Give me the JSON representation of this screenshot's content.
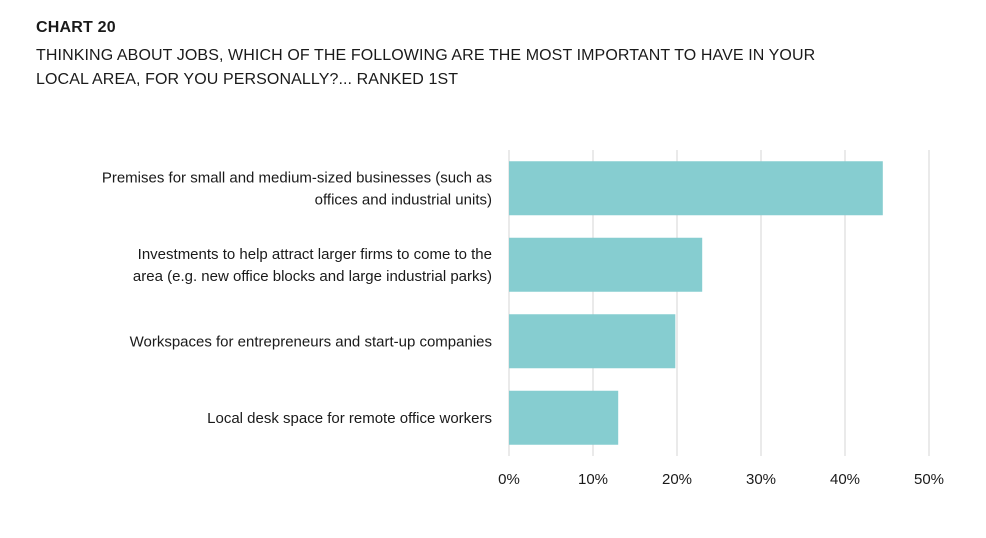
{
  "header": {
    "label": "CHART 20",
    "title": "THINKING ABOUT JOBS, WHICH OF THE FOLLOWING ARE THE MOST IMPORTANT TO HAVE IN YOUR LOCAL AREA, FOR YOU PERSONALLY?... RANKED 1ST"
  },
  "colors": {
    "bar": "#86CDD0",
    "grid": "#d4d4d4",
    "text": "#1a1a1a"
  },
  "chart_data": {
    "type": "bar",
    "orientation": "horizontal",
    "title": "THINKING ABOUT JOBS, WHICH OF THE FOLLOWING ARE THE MOST IMPORTANT TO HAVE IN YOUR LOCAL AREA, FOR YOU PERSONALLY?... RANKED 1ST",
    "categories": [
      [
        "Premises for small and medium-sized businesses (such as",
        "offices and industrial units)"
      ],
      [
        "Investments to help attract larger firms to come to the",
        "area (e.g. new office blocks and large industrial parks)"
      ],
      [
        "Workspaces for entrepreneurs and start-up companies"
      ],
      [
        "Local desk space for remote office workers"
      ]
    ],
    "values": [
      44.5,
      23,
      19.8,
      13
    ],
    "xlim": [
      0,
      50
    ],
    "xticks": [
      0,
      10,
      20,
      30,
      40,
      50
    ],
    "xtick_labels": [
      "0%",
      "10%",
      "20%",
      "30%",
      "40%",
      "50%"
    ],
    "xlabel": "",
    "ylabel": "",
    "grid": true,
    "legend": "none"
  }
}
